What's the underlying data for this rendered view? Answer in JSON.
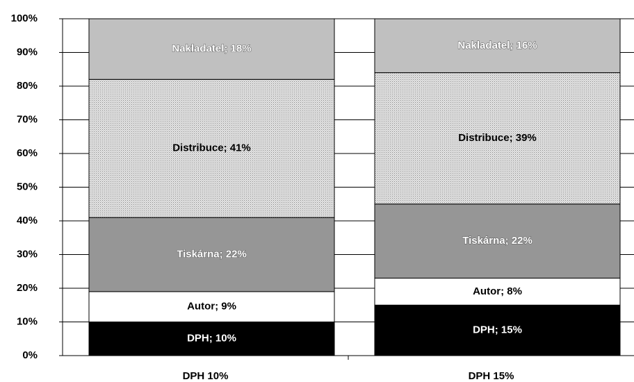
{
  "chart_data": {
    "type": "stacked_bar",
    "categories": [
      "DPH 10%",
      "DPH 15%"
    ],
    "series": [
      {
        "name": "DPH",
        "color": "#000000",
        "values": [
          10,
          15
        ],
        "value_labels": [
          "DPH; 10%",
          "DPH; 15%"
        ]
      },
      {
        "name": "Autor",
        "color": "#ffffff",
        "values": [
          9,
          8
        ],
        "value_labels": [
          "Autor; 9%",
          "Autor; 8%"
        ]
      },
      {
        "name": "Tiskárna",
        "color": "#969696",
        "values": [
          22,
          22
        ],
        "value_labels": [
          "Tiskárna; 22%",
          "Tiskárna; 22%"
        ]
      },
      {
        "name": "Distribuce",
        "color": "#d6d6d6",
        "values": [
          41,
          39
        ],
        "value_labels": [
          "Distribuce; 41%",
          "Distribuce; 39%"
        ]
      },
      {
        "name": "Nakladatel",
        "color": "#c0c0c0",
        "values": [
          18,
          16
        ],
        "value_labels": [
          "Nakladatel; 18%",
          "Nakladatel; 16%"
        ]
      }
    ],
    "ylim": [
      0,
      100
    ],
    "yticks": [
      {
        "value": 0,
        "label": "0%"
      },
      {
        "value": 10,
        "label": "10%"
      },
      {
        "value": 20,
        "label": "20%"
      },
      {
        "value": 30,
        "label": "30%"
      },
      {
        "value": 40,
        "label": "40%"
      },
      {
        "value": 50,
        "label": "50%"
      },
      {
        "value": 60,
        "label": "60%"
      },
      {
        "value": 70,
        "label": "70%"
      },
      {
        "value": 80,
        "label": "80%"
      },
      {
        "value": 90,
        "label": "90%"
      },
      {
        "value": 100,
        "label": "100%"
      }
    ],
    "grid": true
  }
}
